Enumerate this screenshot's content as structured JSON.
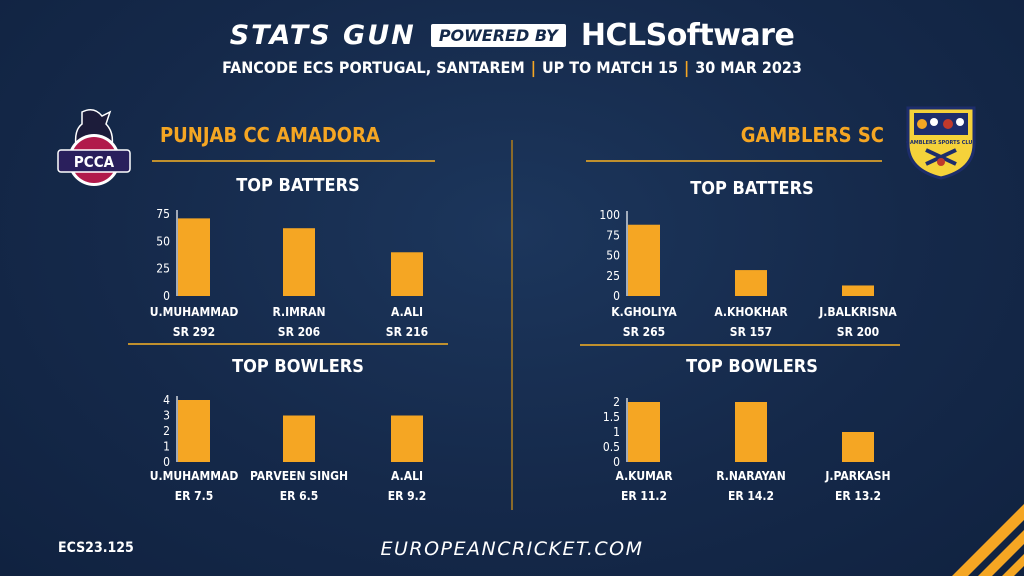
{
  "header": {
    "brand": "STATS GUN",
    "powered_by": "POWERED BY",
    "sponsor": "HCLSoftware",
    "event": "FANCODE ECS PORTUGAL, SANTAREM",
    "match_range": "UP TO MATCH  15",
    "date": "30 MAR 2023"
  },
  "teams": [
    {
      "name": "PUNJAB CC AMADORA",
      "logo_text": "PCCA"
    },
    {
      "name": "GAMBLERS SC",
      "logo_text": "GAMBLERS SPORTS CLUB"
    }
  ],
  "footer": {
    "code": "ECS23.125",
    "url": "EUROPEANCRICKET.COM"
  },
  "colors": {
    "background": "#15294a",
    "bar": "#f5a623",
    "accent": "#f5a623"
  },
  "chart_data": [
    {
      "type": "bar",
      "title": "TOP BATTERS",
      "team": "PUNJAB CC AMADORA",
      "categories": [
        "U.MUHAMMAD",
        "R.IMRAN",
        "A.ALI"
      ],
      "values": [
        71,
        62,
        40
      ],
      "sublabels": [
        "SR 292",
        "SR 206",
        "SR 216"
      ],
      "yticks": [
        0,
        25,
        50,
        75
      ],
      "ylim": [
        0,
        75
      ],
      "grid": false
    },
    {
      "type": "bar",
      "title": "TOP BOWLERS",
      "team": "PUNJAB CC AMADORA",
      "categories": [
        "U.MUHAMMAD",
        "PARVEEN SINGH",
        "A.ALI"
      ],
      "values": [
        4,
        3,
        3
      ],
      "sublabels": [
        "ER 7.5",
        "ER 6.5",
        "ER 9.2"
      ],
      "yticks": [
        0,
        1,
        2,
        3,
        4
      ],
      "ylim": [
        0,
        4
      ],
      "grid": false
    },
    {
      "type": "bar",
      "title": "TOP BATTERS",
      "team": "GAMBLERS SC",
      "categories": [
        "K.GHOLIYA",
        "A.KHOKHAR",
        "J.BALKRISNA"
      ],
      "values": [
        88,
        32,
        13
      ],
      "sublabels": [
        "SR 265",
        "SR 157",
        "SR 200"
      ],
      "yticks": [
        0,
        25,
        50,
        75,
        100
      ],
      "ylim": [
        0,
        100
      ],
      "grid": false
    },
    {
      "type": "bar",
      "title": "TOP BOWLERS",
      "team": "GAMBLERS SC",
      "categories": [
        "A.KUMAR",
        "R.NARAYAN",
        "J.PARKASH"
      ],
      "values": [
        2,
        2,
        1
      ],
      "sublabels": [
        "ER 11.2",
        "ER 14.2",
        "ER 13.2"
      ],
      "yticks": [
        0,
        0.5,
        1,
        1.5,
        2
      ],
      "ylim": [
        0,
        2
      ],
      "grid": false
    }
  ]
}
